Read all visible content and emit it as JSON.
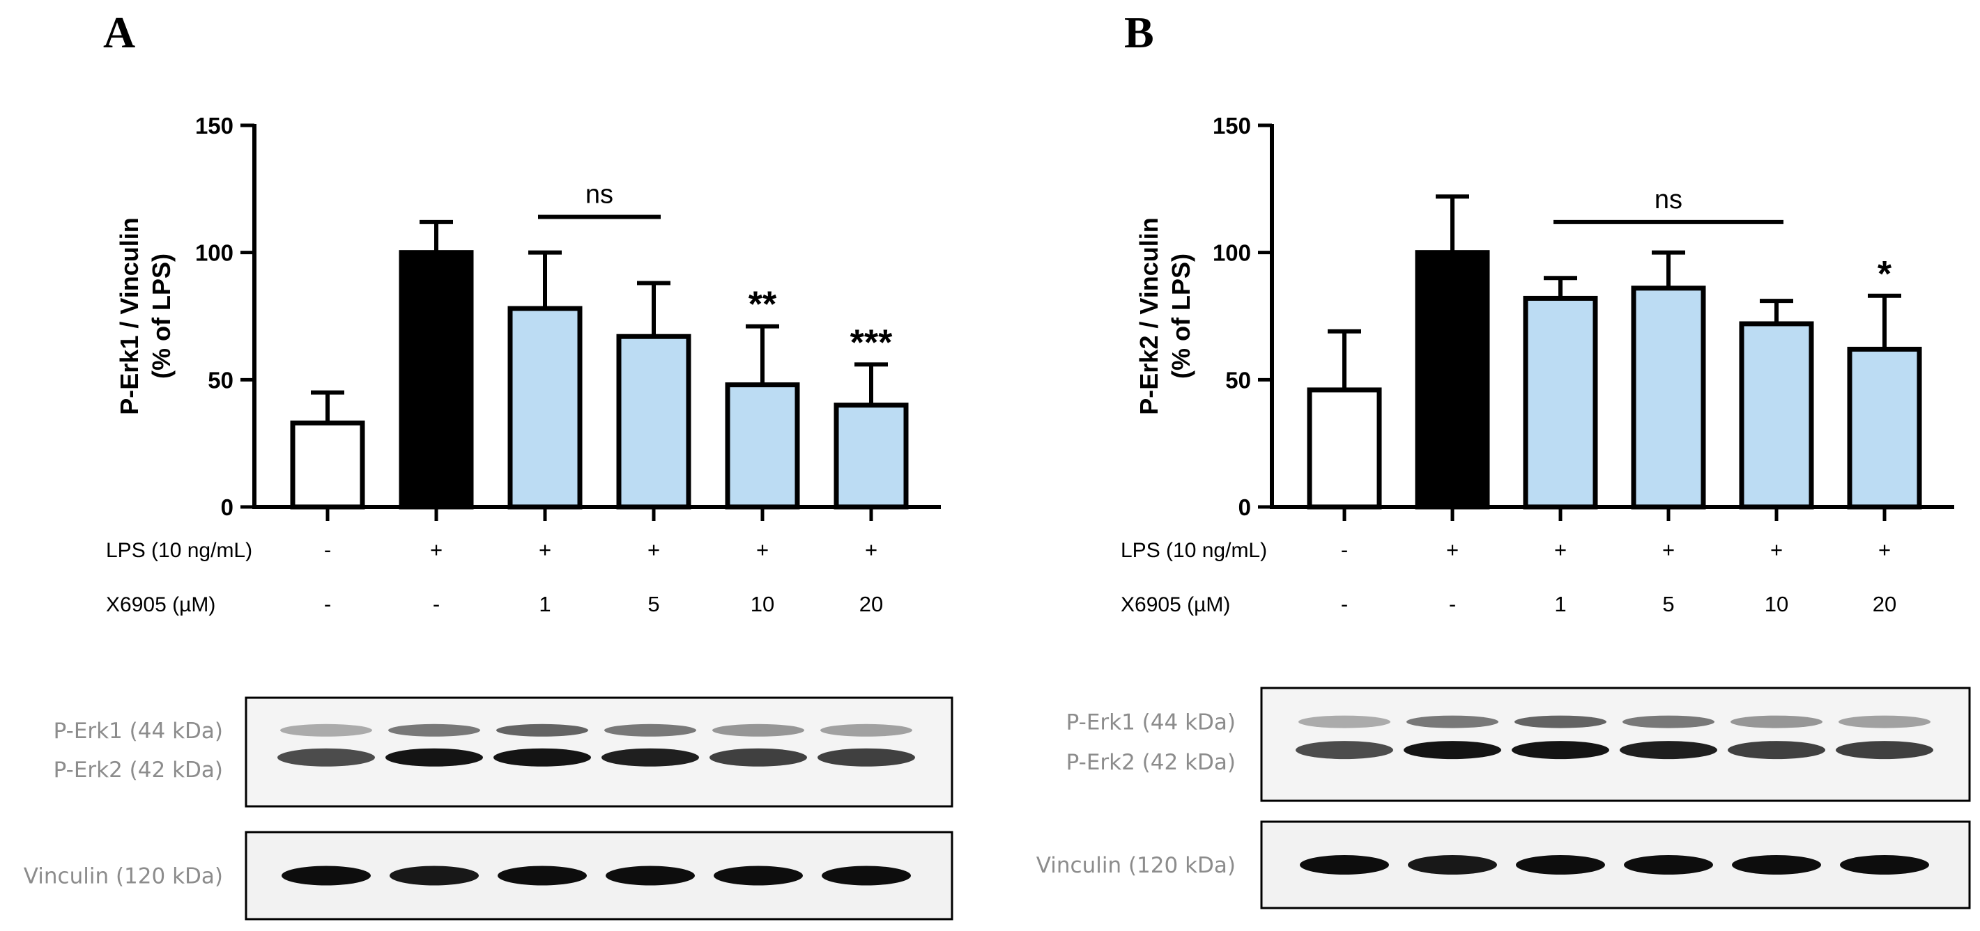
{
  "panels": [
    {
      "letter": "A",
      "chart_data": {
        "type": "bar",
        "ylabel_line1": "P-Erk1 / Vinculin",
        "ylabel_line2": "(% of LPS)",
        "ylim": [
          0,
          150
        ],
        "yticks": [
          "0",
          "50",
          "100",
          "150"
        ],
        "categories": [
          "1",
          "2",
          "3",
          "4",
          "5",
          "6"
        ],
        "values": [
          33,
          100,
          78,
          67,
          48,
          40
        ],
        "errors": [
          12,
          12,
          22,
          21,
          23,
          16
        ],
        "bar_fill": [
          "#ffffff",
          "#000000",
          "#bcdcf3",
          "#bcdcf3",
          "#bcdcf3",
          "#bcdcf3"
        ],
        "significance": [
          "",
          "",
          "",
          "",
          "**",
          "***"
        ],
        "ns_bracket": {
          "label": "ns",
          "from": 2,
          "to": 3,
          "y": 114
        },
        "conditions": [
          {
            "label": "LPS (10 ng/mL)",
            "values": [
              "-",
              "+",
              "+",
              "+",
              "+",
              "+"
            ]
          },
          {
            "label": "X6905 (µM)",
            "values": [
              "-",
              "-",
              "1",
              "5",
              "10",
              "20"
            ]
          }
        ]
      },
      "blot": {
        "top_labels": [
          "P-Erk1 (44 kDa)",
          "P-Erk2 (42 kDa)"
        ],
        "bottom_label": "Vinculin (120 kDa)"
      }
    },
    {
      "letter": "B",
      "chart_data": {
        "type": "bar",
        "ylabel_line1": "P-Erk2 / Vinculin",
        "ylabel_line2": "(% of LPS)",
        "ylim": [
          0,
          150
        ],
        "yticks": [
          "0",
          "50",
          "100",
          "150"
        ],
        "categories": [
          "1",
          "2",
          "3",
          "4",
          "5",
          "6"
        ],
        "values": [
          46,
          100,
          82,
          86,
          72,
          62
        ],
        "errors": [
          23,
          22,
          8,
          14,
          9,
          21
        ],
        "bar_fill": [
          "#ffffff",
          "#000000",
          "#bcdcf3",
          "#bcdcf3",
          "#bcdcf3",
          "#bcdcf3"
        ],
        "significance": [
          "",
          "",
          "",
          "",
          "",
          "*"
        ],
        "ns_bracket": {
          "label": "ns",
          "from": 2,
          "to": 4,
          "y": 112
        },
        "conditions": [
          {
            "label": "LPS (10 ng/mL)",
            "values": [
              "-",
              "+",
              "+",
              "+",
              "+",
              "+"
            ]
          },
          {
            "label": "X6905 (µM)",
            "values": [
              "-",
              "-",
              "1",
              "5",
              "10",
              "20"
            ]
          }
        ]
      },
      "blot": {
        "top_labels": [
          "P-Erk1 (44 kDa)",
          "P-Erk2 (42 kDa)"
        ],
        "bottom_label": "Vinculin (120 kDa)"
      }
    }
  ]
}
